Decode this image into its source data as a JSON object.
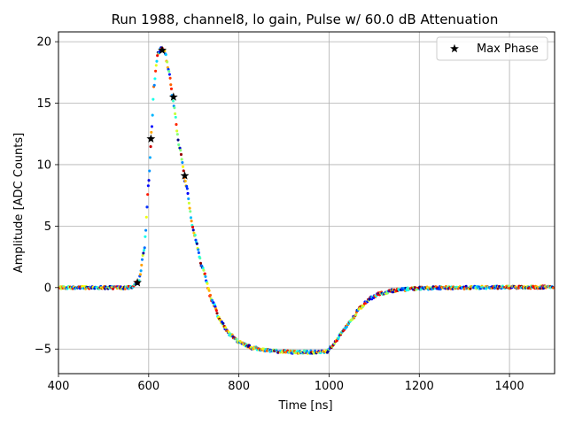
{
  "chart_data": {
    "type": "scatter",
    "title": "Run 1988, channel8, lo gain, Pulse w/ 60.0 dB Attenuation",
    "xlabel": "Time [ns]",
    "ylabel": "Amplitude [ADC Counts]",
    "xlim": [
      400,
      1500
    ],
    "ylim": [
      -7,
      20.8
    ],
    "xticks": [
      400,
      600,
      800,
      1000,
      1200,
      1400
    ],
    "yticks": [
      -5,
      0,
      5,
      10,
      15,
      20
    ],
    "grid": true,
    "legend_position": "top-right",
    "colormap": "jet",
    "pulse_points": [
      [
        400,
        0.0
      ],
      [
        560,
        0.0
      ],
      [
        578,
        0.5
      ],
      [
        590,
        3.0
      ],
      [
        600,
        8.5
      ],
      [
        606,
        12.5
      ],
      [
        612,
        16.5
      ],
      [
        620,
        19.0
      ],
      [
        628,
        19.5
      ],
      [
        636,
        19.2
      ],
      [
        645,
        17.5
      ],
      [
        655,
        15.0
      ],
      [
        668,
        11.5
      ],
      [
        682,
        8.5
      ],
      [
        700,
        4.5
      ],
      [
        720,
        1.5
      ],
      [
        740,
        -1.0
      ],
      [
        760,
        -2.8
      ],
      [
        780,
        -3.8
      ],
      [
        800,
        -4.4
      ],
      [
        830,
        -4.9
      ],
      [
        870,
        -5.15
      ],
      [
        920,
        -5.25
      ],
      [
        970,
        -5.25
      ],
      [
        995,
        -5.2
      ],
      [
        1010,
        -4.6
      ],
      [
        1030,
        -3.6
      ],
      [
        1050,
        -2.6
      ],
      [
        1070,
        -1.6
      ],
      [
        1090,
        -0.9
      ],
      [
        1110,
        -0.5
      ],
      [
        1150,
        -0.2
      ],
      [
        1200,
        -0.05
      ],
      [
        1300,
        0.0
      ],
      [
        1500,
        0.05
      ]
    ],
    "series": [
      {
        "name": "Max Phase",
        "marker": "star",
        "color": "#000000",
        "points": [
          [
            575,
            0.4
          ],
          [
            605,
            12.1
          ],
          [
            630,
            19.3
          ],
          [
            655,
            15.5
          ],
          [
            680,
            9.1
          ]
        ]
      }
    ]
  }
}
